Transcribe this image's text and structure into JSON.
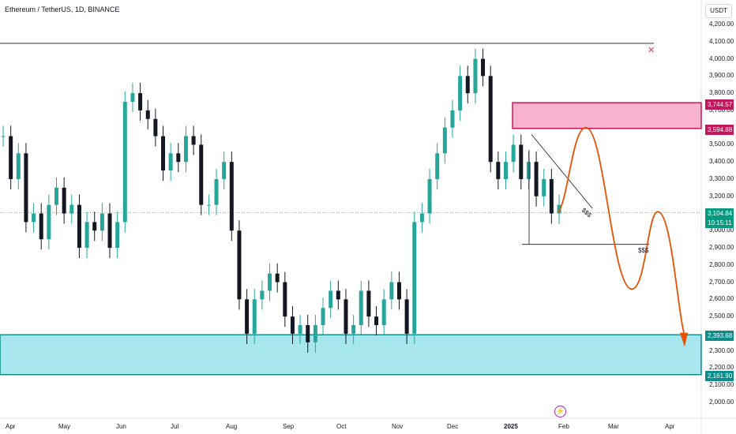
{
  "header": {
    "symbol_title": "Ethereum / TetherUS, 1D, BINANCE",
    "currency": "USDT"
  },
  "colors": {
    "up": "#26a69a",
    "down": "#131722",
    "supply_zone": "#f7b3cd",
    "supply_border": "#c2185b",
    "demand_zone": "#a8e6ee",
    "demand_border": "#0d8c8c",
    "projection": "#e65100",
    "current_tag": "#089981",
    "current_line": "#26a69a",
    "close_x": "#f23645"
  },
  "price_axis": {
    "labels": [
      "4,200.00",
      "4,100.00",
      "4,000.00",
      "3,900.00",
      "3,800.00",
      "3,700.00",
      "3,600.00",
      "3,500.00",
      "3,400.00",
      "3,300.00",
      "3,200.00",
      "3,100.00",
      "3,000.00",
      "2,900.00",
      "2,800.00",
      "2,700.00",
      "2,600.00",
      "2,500.00",
      "2,400.00",
      "2,300.00",
      "2,200.00",
      "2,100.00",
      "2,000.00"
    ],
    "tags": {
      "supply_top": "3,744.57",
      "supply_bottom": "3,594.88",
      "current_price": "3,104.84",
      "countdown": "10:15:11",
      "demand_top": "2,393.68",
      "demand_bottom": "2,161.90"
    }
  },
  "time_axis": {
    "labels": [
      "Apr",
      "May",
      "Jun",
      "Jul",
      "Aug",
      "Sep",
      "Oct",
      "Nov",
      "Dec",
      "2025",
      "Feb",
      "Mar",
      "Apr"
    ]
  },
  "annotations": {
    "liquidity_upper": "$$$",
    "liquidity_lower": "$$$"
  },
  "chart_data": {
    "type": "candlestick",
    "instrument": "Ethereum / TetherUS",
    "interval": "1D",
    "exchange": "BINANCE",
    "y_range": [
      1950,
      4260
    ],
    "current_price": 3104.84,
    "key_levels": {
      "resistance_line": 4090
    },
    "zones": [
      {
        "name": "supply",
        "top": 3744.57,
        "bottom": 3594.88
      },
      {
        "name": "demand",
        "top": 2393.68,
        "bottom": 2161.9
      }
    ],
    "projection_path": [
      3104,
      3600,
      2660,
      3110,
      2360
    ],
    "candles_close_approx": [
      3550,
      3300,
      3450,
      3050,
      3100,
      2950,
      3150,
      3250,
      3100,
      3150,
      2900,
      3050,
      3000,
      3100,
      2900,
      3050,
      3750,
      3800,
      3700,
      3650,
      3550,
      3350,
      3450,
      3400,
      3550,
      3500,
      3150,
      3150,
      3300,
      3400,
      3000,
      2600,
      2400,
      2600,
      2650,
      2750,
      2700,
      2500,
      2400,
      2450,
      2350,
      2450,
      2550,
      2650,
      2600,
      2400,
      2450,
      2650,
      2500,
      2450,
      2600,
      2700,
      2600,
      2400,
      3050,
      3100,
      3300,
      3450,
      3600,
      3700,
      3900,
      3800,
      4000,
      3900,
      3400,
      3300,
      3400,
      3500,
      3300,
      3400,
      3200,
      3300,
      3100,
      3150
    ]
  }
}
